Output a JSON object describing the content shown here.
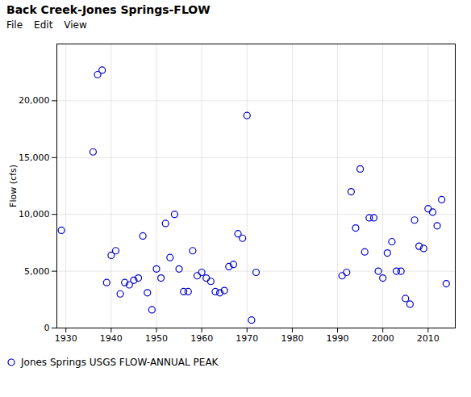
{
  "chart_data": {
    "type": "scatter",
    "title": "Back Creek-Jones Springs-FLOW",
    "annotations": [
      "File",
      "Edit",
      "View"
    ],
    "ylabel": "Flow (cfs)",
    "x": [
      1929,
      1936,
      1937,
      1938,
      1939,
      1940,
      1941,
      1942,
      1943,
      1944,
      1945,
      1946,
      1947,
      1948,
      1949,
      1950,
      1951,
      1952,
      1953,
      1954,
      1955,
      1956,
      1957,
      1958,
      1959,
      1960,
      1961,
      1962,
      1963,
      1964,
      1965,
      1966,
      1967,
      1968,
      1969,
      1970,
      1971,
      1972,
      1991,
      1992,
      1993,
      1994,
      1995,
      1996,
      1997,
      1998,
      1999,
      2000,
      2001,
      2002,
      2003,
      2004,
      2005,
      2006,
      2007,
      2008,
      2009,
      2010,
      2011,
      2012,
      2013,
      2014
    ],
    "series": [
      {
        "name": "Jones Springs USGS FLOW-ANNUAL PEAK",
        "color": "#0000cc",
        "marker": "circle",
        "values": [
          8600,
          15500,
          22300,
          22700,
          4000,
          6400,
          6800,
          3000,
          4000,
          3800,
          4200,
          4400,
          8100,
          3100,
          1600,
          5200,
          4400,
          9200,
          6200,
          10000,
          5200,
          3200,
          3200,
          6800,
          4600,
          4900,
          4400,
          4100,
          3200,
          3100,
          3300,
          5400,
          5600,
          8300,
          7900,
          18700,
          700,
          4900,
          4600,
          4900,
          12000,
          8800,
          14000,
          6700,
          9700,
          9700,
          5000,
          4400,
          6600,
          7600,
          5000,
          5000,
          2600,
          2100,
          9500,
          7200,
          7000,
          10500,
          10200,
          9000,
          11300,
          3900
        ]
      }
    ],
    "xlim": [
      1928,
      2016
    ],
    "ylim": [
      0,
      25000
    ],
    "xticks": [
      1930,
      1940,
      1950,
      1960,
      1970,
      1980,
      1990,
      2000,
      2010
    ],
    "yticks": [
      0,
      {
        "value": 5000,
        "label": "5,000"
      },
      {
        "value": 10000,
        "label": "10,000"
      },
      {
        "value": 15000,
        "label": "15,000"
      },
      {
        "value": 20000,
        "label": "20,000"
      }
    ],
    "grid": true,
    "legend": "lower left"
  }
}
